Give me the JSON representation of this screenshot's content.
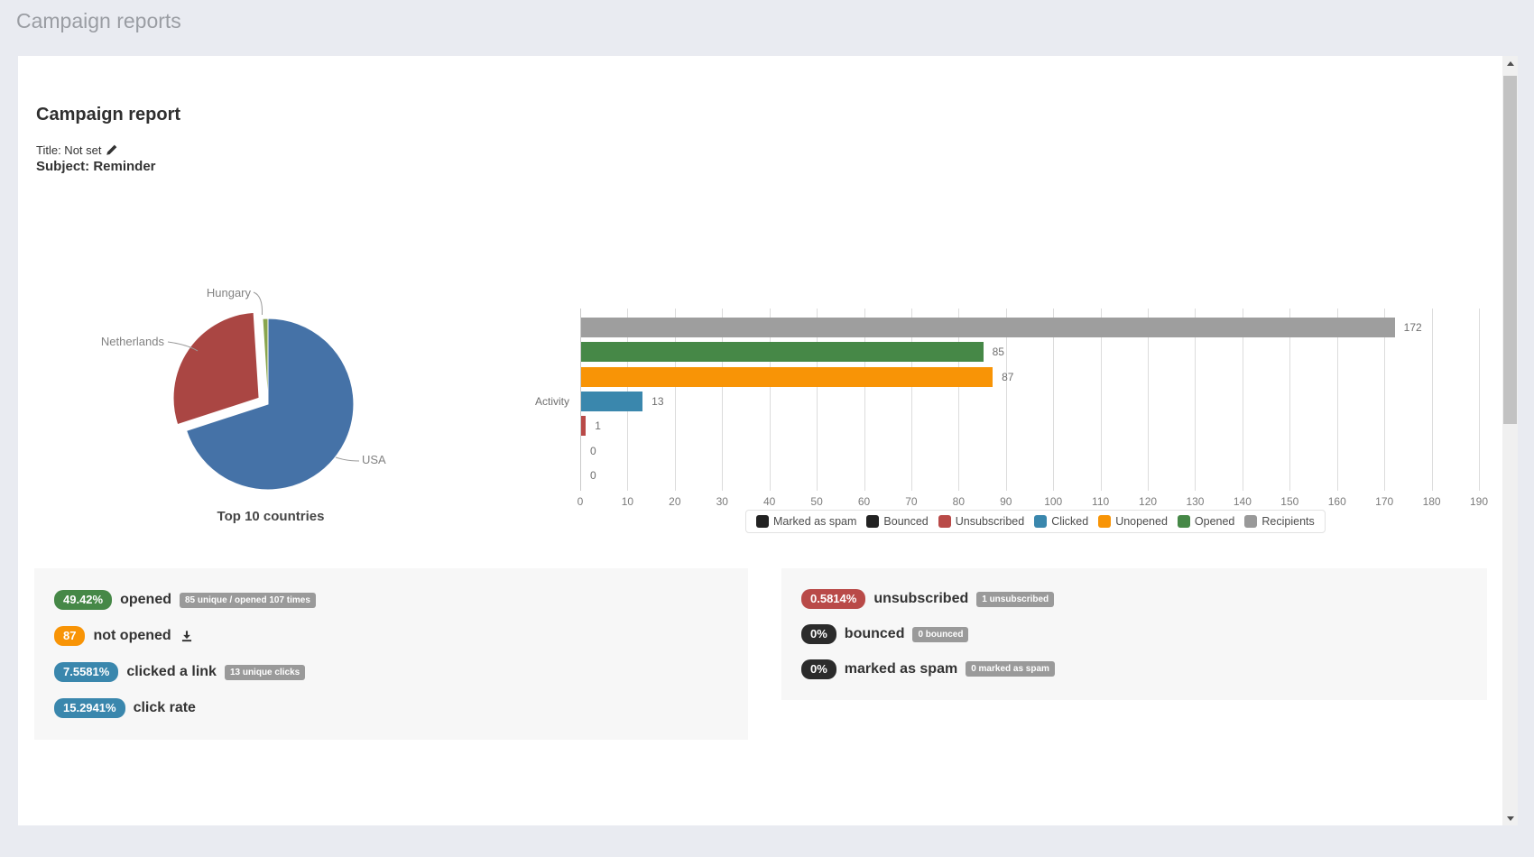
{
  "page": {
    "title": "Campaign reports"
  },
  "report": {
    "heading": "Campaign report",
    "title_label": "Title: Not set",
    "subject_label": "Subject: Reminder"
  },
  "chart_data": [
    {
      "type": "pie",
      "title": "Top 10 countries",
      "legend_position": "outside-labels-with-leader-lines",
      "slices": [
        {
          "label": "USA",
          "value": 70,
          "color": "#4572A7",
          "offset": false
        },
        {
          "label": "Netherlands",
          "value": 29,
          "color": "#AA4643",
          "offset": true
        },
        {
          "label": "Hungary",
          "value": 1,
          "color": "#89A54E",
          "offset": false
        }
      ]
    },
    {
      "type": "bar",
      "orientation": "horizontal",
      "ylabel": "Activity",
      "xlim": [
        0,
        190
      ],
      "tick_step": 10,
      "grid": true,
      "legend_position": "bottom",
      "series": [
        {
          "name": "Recipients",
          "value": 172,
          "color": "#9e9e9e"
        },
        {
          "name": "Opened",
          "value": 85,
          "color": "#468847"
        },
        {
          "name": "Unopened",
          "value": 87,
          "color": "#f89406"
        },
        {
          "name": "Clicked",
          "value": 13,
          "color": "#3a87ad"
        },
        {
          "name": "Unsubscribed",
          "value": 1,
          "color": "#b94a48"
        },
        {
          "name": "Bounced",
          "value": 0,
          "color": "#222222"
        },
        {
          "name": "Marked as spam",
          "value": 0,
          "color": "#222222"
        }
      ],
      "legend": [
        {
          "label": "Marked as spam",
          "color": "#222222"
        },
        {
          "label": "Bounced",
          "color": "#222222"
        },
        {
          "label": "Unsubscribed",
          "color": "#b94a48"
        },
        {
          "label": "Clicked",
          "color": "#3a87ad"
        },
        {
          "label": "Unopened",
          "color": "#f89406"
        },
        {
          "label": "Opened",
          "color": "#468847"
        },
        {
          "label": "Recipients",
          "color": "#999999"
        }
      ]
    }
  ],
  "stats": {
    "left": [
      {
        "pill": "49.42%",
        "pill_color": "#468847",
        "label": "opened",
        "badge": "85 unique / opened 107 times",
        "icon": ""
      },
      {
        "pill": "87",
        "pill_color": "#f89406",
        "label": "not opened",
        "badge": "",
        "icon": "download-icon"
      },
      {
        "pill": "7.5581%",
        "pill_color": "#3a87ad",
        "label": "clicked a link",
        "badge": "13 unique clicks",
        "icon": ""
      },
      {
        "pill": "15.2941%",
        "pill_color": "#3a87ad",
        "label": "click rate",
        "badge": "",
        "icon": ""
      }
    ],
    "right": [
      {
        "pill": "0.5814%",
        "pill_color": "#b94a48",
        "label": "unsubscribed",
        "badge": "1 unsubscribed",
        "icon": ""
      },
      {
        "pill": "0%",
        "pill_color": "#2b2b2b",
        "label": "bounced",
        "badge": "0 bounced",
        "icon": ""
      },
      {
        "pill": "0%",
        "pill_color": "#2b2b2b",
        "label": "marked as spam",
        "badge": "0 marked as spam",
        "icon": ""
      }
    ]
  }
}
